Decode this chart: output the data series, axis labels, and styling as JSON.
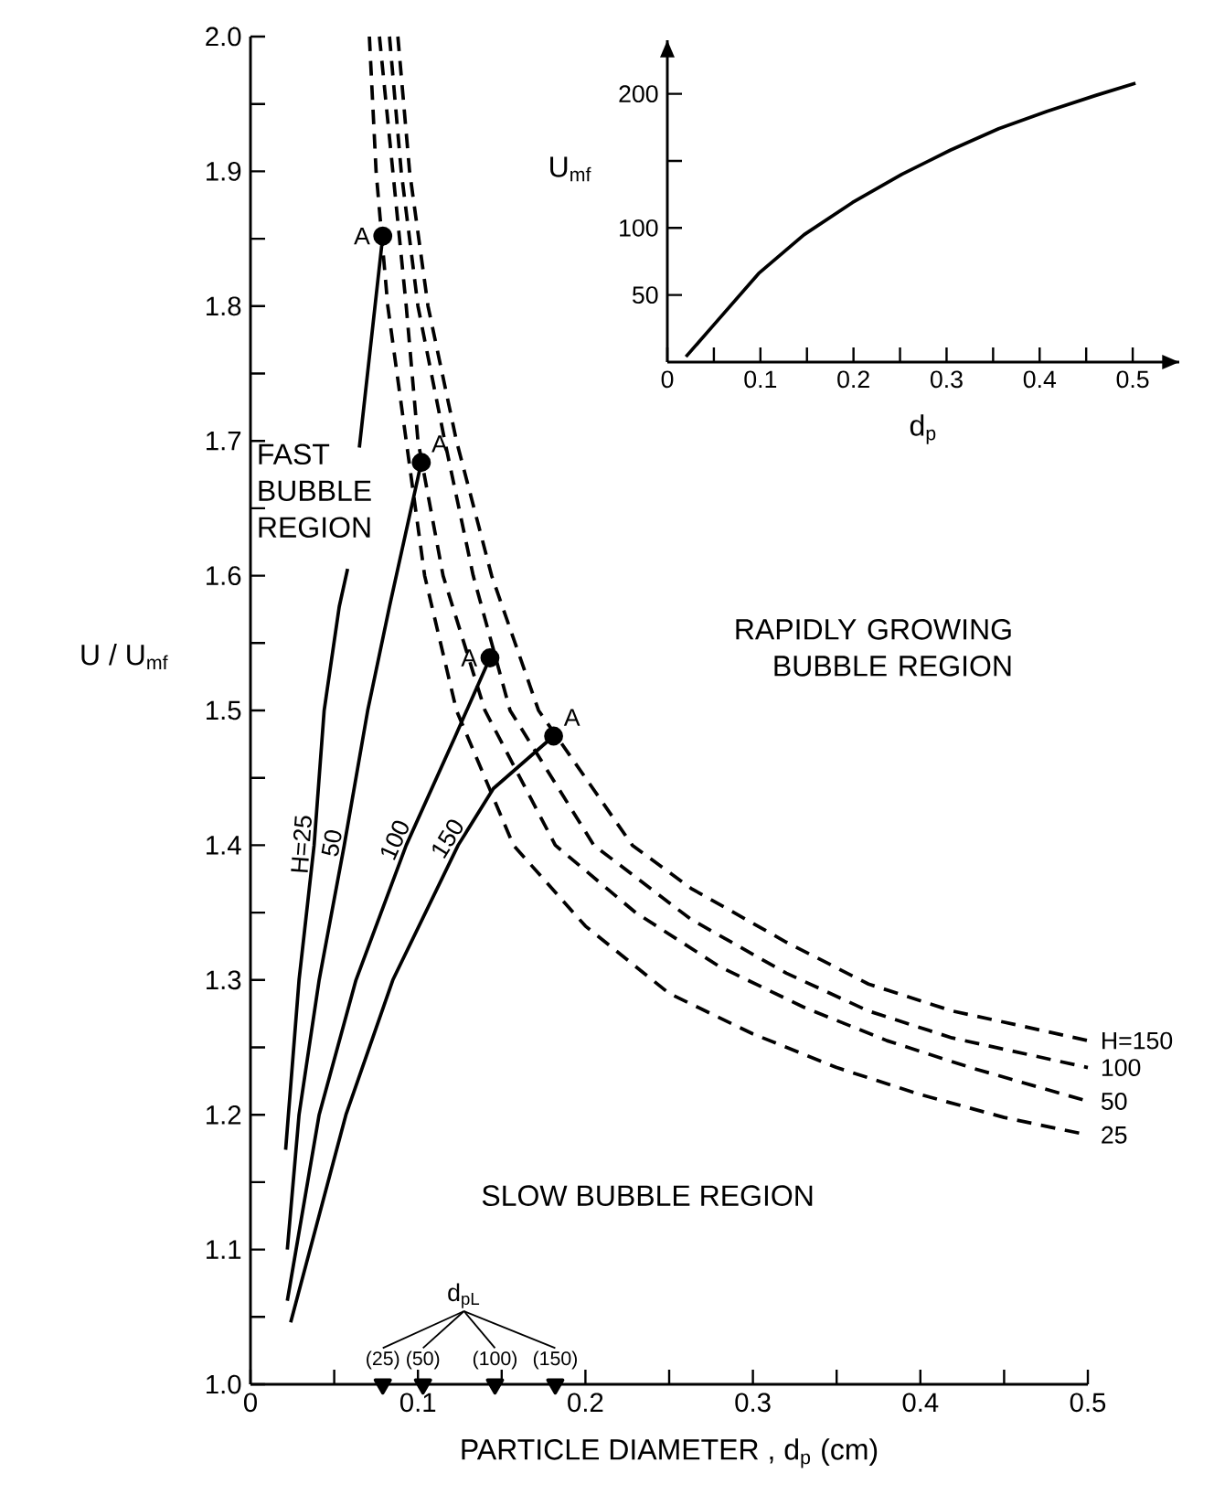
{
  "chart_data": [
    {
      "type": "line",
      "xlabel": "PARTICLE DIAMETER , d$_{p}$ (cm)",
      "ylabel": "U / U$_{mf}$",
      "xlim": [
        0,
        0.5
      ],
      "ylim": [
        1,
        2
      ],
      "xticks": [
        0,
        {
          "value": 0.05,
          "label": null
        },
        0.1,
        {
          "value": 0.15,
          "label": null
        },
        0.2,
        {
          "value": 0.25,
          "label": null
        },
        0.3,
        {
          "value": 0.35,
          "label": null
        },
        0.4,
        {
          "value": 0.45,
          "label": null
        },
        0.5
      ],
      "yticks": [
        {
          "value": 1,
          "label": "1.0"
        },
        {
          "value": 1.05,
          "label": null
        },
        {
          "value": 1.1,
          "label": "1.1"
        },
        {
          "value": 1.15,
          "label": null
        },
        {
          "value": 1.2,
          "label": "1.2"
        },
        {
          "value": 1.25,
          "label": null
        },
        {
          "value": 1.3,
          "label": "1.3"
        },
        {
          "value": 1.35,
          "label": null
        },
        {
          "value": 1.4,
          "label": "1.4"
        },
        {
          "value": 1.45,
          "label": null
        },
        {
          "value": 1.5,
          "label": "1.5"
        },
        {
          "value": 1.55,
          "label": null
        },
        {
          "value": 1.6,
          "label": "1.6"
        },
        {
          "value": 1.65,
          "label": null
        },
        {
          "value": 1.7,
          "label": "1.7"
        },
        {
          "value": 1.75,
          "label": null
        },
        {
          "value": 1.8,
          "label": "1.8"
        },
        {
          "value": 1.85,
          "label": null
        },
        {
          "value": 1.9,
          "label": "1.9"
        },
        {
          "value": 1.95,
          "label": null
        },
        {
          "value": 2,
          "label": "2.0"
        }
      ],
      "annotations": [
        "FAST BUBBLE REGION",
        "RAPIDLY GROWING BUBBLE REGION",
        "SLOW BUBBLE REGION",
        {
          "text": "(25)",
          "x": 0.079,
          "y": 1.0
        },
        {
          "text": "(50)",
          "x": 0.103,
          "y": 1.0
        },
        {
          "text": "(100)",
          "x": 0.146,
          "y": 1.0
        },
        {
          "text": "(150)",
          "x": 0.182,
          "y": 1.0
        }
      ],
      "series": [
        {
          "name": "H=25",
          "color": "#000000",
          "line_style": "solid",
          "x": [
            0.021,
            0.029,
            0.038,
            0.044,
            0.053,
            0.058,
            0.061,
            0.065,
            0.079
          ],
          "values": [
            1.174,
            1.3,
            1.4,
            1.5,
            1.577,
            1.605,
            null,
            1.695,
            1.852
          ]
        },
        {
          "name": "50",
          "color": "#000000",
          "line_style": "solid",
          "x": [
            0.022,
            0.029,
            0.041,
            0.056,
            0.07,
            0.083,
            0.102
          ],
          "values": [
            1.1,
            1.2,
            1.3,
            1.4,
            1.5,
            1.577,
            1.684
          ]
        },
        {
          "name": "100",
          "color": "#000000",
          "line_style": "solid",
          "x": [
            0.022,
            0.041,
            0.063,
            0.093,
            0.122,
            0.143
          ],
          "values": [
            1.062,
            1.2,
            1.3,
            1.4,
            1.48,
            1.539
          ]
        },
        {
          "name": "150",
          "color": "#000000",
          "line_style": "solid",
          "x": [
            0.024,
            0.057,
            0.085,
            0.124,
            0.145,
            0.181
          ],
          "values": [
            1.046,
            1.2,
            1.3,
            1.4,
            1.442,
            1.481
          ]
        },
        {
          "name": "H=150",
          "color": "#000000",
          "line_style": "dashed",
          "x": [
            0.088,
            0.095,
            0.106,
            0.123,
            0.144,
            0.172,
            0.228,
            0.263,
            0.32,
            0.369,
            0.419,
            0.46,
            0.5
          ],
          "values": [
            2.0,
            1.9,
            1.8,
            1.7,
            1.6,
            1.5,
            1.4,
            1.368,
            1.328,
            1.297,
            1.277,
            1.266,
            1.255
          ]
        },
        {
          "name": "100",
          "color": "#000000",
          "line_style": "dashed",
          "x": [
            0.083,
            0.09,
            0.1,
            0.116,
            0.133,
            0.155,
            0.205,
            0.263,
            0.32,
            0.369,
            0.419,
            0.5
          ],
          "values": [
            2.0,
            1.9,
            1.8,
            1.7,
            1.6,
            1.5,
            1.4,
            1.345,
            1.305,
            1.277,
            1.257,
            1.235
          ]
        },
        {
          "name": "50",
          "color": "#000000",
          "line_style": "dashed",
          "x": [
            0.077,
            0.085,
            0.093,
            0.1,
            0.115,
            0.14,
            0.182,
            0.23,
            0.28,
            0.33,
            0.38,
            0.43,
            0.5
          ],
          "values": [
            2.0,
            1.9,
            1.8,
            1.7,
            1.6,
            1.5,
            1.4,
            1.35,
            1.31,
            1.28,
            1.255,
            1.235,
            1.21
          ]
        },
        {
          "name": "25",
          "color": "#000000",
          "line_style": "dashed",
          "x": [
            0.071,
            0.075,
            0.082,
            0.093,
            0.104,
            0.123,
            0.157,
            0.2,
            0.25,
            0.3,
            0.35,
            0.4,
            0.45,
            0.5
          ],
          "values": [
            2.0,
            1.9,
            1.8,
            1.7,
            1.6,
            1.5,
            1.4,
            1.34,
            1.29,
            1.26,
            1.235,
            1.215,
            1.198,
            1.185
          ]
        },
        {
          "type": "scatter",
          "color": "#000000",
          "marker": "circle",
          "x": [
            0.079,
            0.102,
            0.143,
            0.181
          ],
          "values": [
            1.852,
            1.684,
            1.539,
            1.481
          ],
          "value_labels": [
            "A",
            "A",
            "A",
            "A"
          ]
        },
        {
          "name": "d$_{pL}$",
          "type": "scatter",
          "color": "#000000",
          "marker": "triangle",
          "x": [
            0.079,
            0.103,
            0.146,
            0.182
          ],
          "values": [
            1.0,
            1.0,
            1.0,
            1.0
          ]
        }
      ]
    },
    {
      "type": "line",
      "xlabel": "d$_{p}$",
      "ylabel": "U$_{mf}$",
      "xlim": [
        0,
        0.55
      ],
      "ylim": [
        0,
        240
      ],
      "xticks": [
        0,
        {
          "value": 0.05,
          "label": null
        },
        0.1,
        {
          "value": 0.15,
          "label": null
        },
        0.2,
        {
          "value": 0.25,
          "label": null
        },
        0.3,
        {
          "value": 0.35,
          "label": null
        },
        0.4,
        {
          "value": 0.45,
          "label": null
        },
        0.5
      ],
      "yticks": [
        50,
        100,
        {
          "value": 150,
          "label": null
        },
        200
      ],
      "series": [
        {
          "color": "#000000",
          "line_style": "solid",
          "x": [
            0.02,
            0.049,
            0.098,
            0.147,
            0.199,
            0.252,
            0.304,
            0.356,
            0.408,
            0.461,
            0.503
          ],
          "values": [
            4,
            27,
            66,
            95,
            119,
            140,
            158,
            174,
            187,
            199,
            208
          ]
        }
      ]
    }
  ]
}
